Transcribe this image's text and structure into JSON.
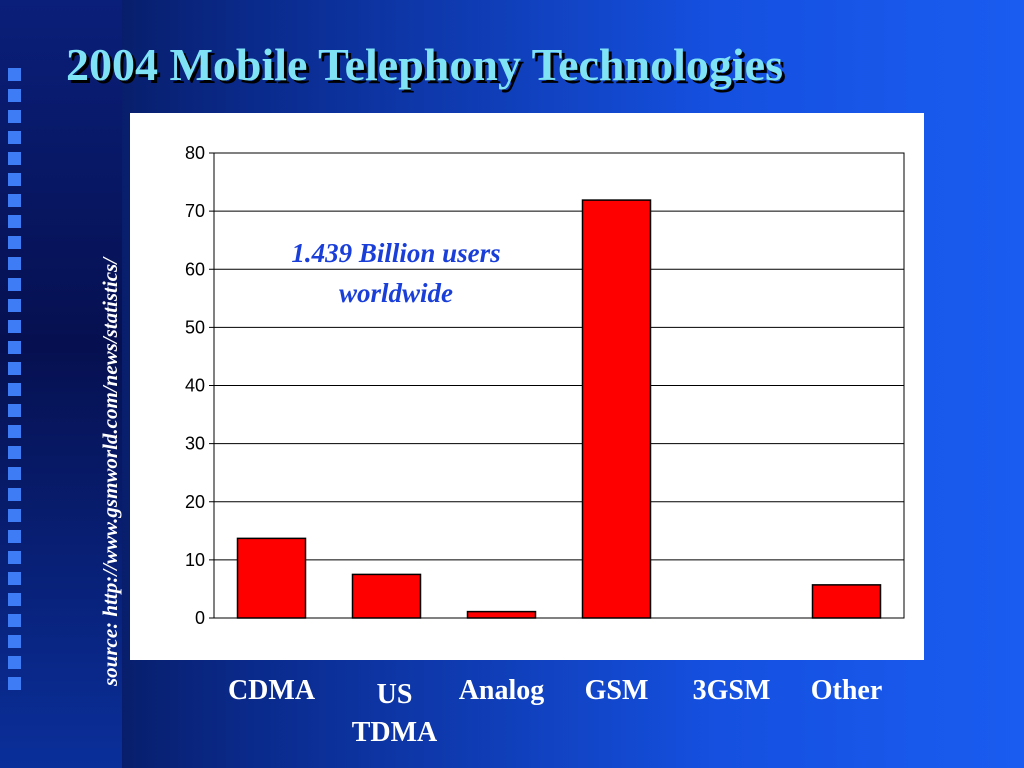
{
  "slide": {
    "title": "2004 Mobile Telephony Technologies",
    "source": "source: http://www.gsmworld.com/news/statistics/"
  },
  "chart_data": {
    "type": "bar",
    "categories": [
      "CDMA",
      "US TDMA",
      "Analog",
      "GSM",
      "3GSM",
      "Other"
    ],
    "category_display": [
      "CDMA",
      "US\nTDMA",
      "Analog",
      "GSM",
      "3GSM",
      "Other"
    ],
    "values": [
      13.7,
      7.5,
      1.1,
      71.9,
      0,
      5.7
    ],
    "ylim": [
      0,
      80
    ],
    "yticks": [
      0,
      10,
      20,
      30,
      40,
      50,
      60,
      70,
      80
    ],
    "grid": true,
    "annotation": "1.439 Billion users worldwide",
    "bar_color": "#ff0000"
  }
}
